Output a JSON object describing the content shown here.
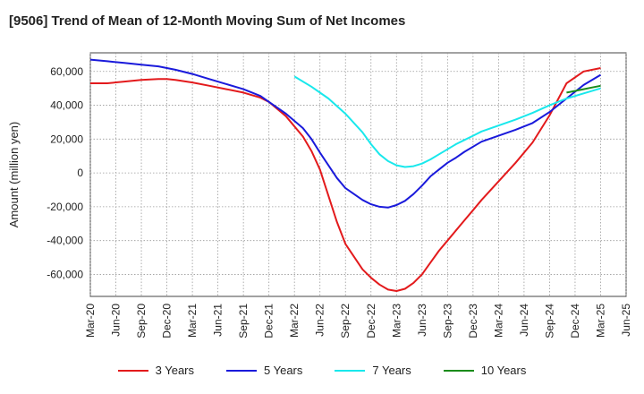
{
  "chart_data": {
    "type": "line",
    "title": "[9506]  Trend of Mean of 12-Month Moving Sum of Net Incomes",
    "xlabel": "",
    "ylabel": "Amount (million yen)",
    "ylim": [
      -73000,
      71000
    ],
    "yticks": [
      60000,
      40000,
      20000,
      0,
      -20000,
      -40000,
      -60000
    ],
    "ytick_labels": [
      "60,000",
      "40,000",
      "20,000",
      "0",
      "-20,000",
      "-40,000",
      "-60,000"
    ],
    "xticks": [
      "Mar-20",
      "Jun-20",
      "Sep-20",
      "Dec-20",
      "Mar-21",
      "Jun-21",
      "Sep-21",
      "Dec-21",
      "Mar-22",
      "Jun-22",
      "Sep-22",
      "Dec-22",
      "Mar-23",
      "Jun-23",
      "Sep-23",
      "Dec-23",
      "Mar-24",
      "Jun-24",
      "Sep-24",
      "Dec-24",
      "Mar-25",
      "Jun-25"
    ],
    "grid": true,
    "legend_position": "bottom",
    "x_index_note": "x is month index, 0 = Mar-20, 3 = Jun-20, ...",
    "series": [
      {
        "name": "3 Years",
        "color": "#e31a1c",
        "x": [
          0,
          2,
          4,
          6,
          8,
          9,
          10,
          12,
          14,
          16,
          18,
          20,
          21,
          23,
          25,
          26,
          27,
          29,
          30,
          32,
          33,
          34,
          35,
          36,
          37,
          38,
          39,
          40,
          41,
          42,
          43,
          44,
          45,
          46,
          48,
          50,
          52,
          54,
          56,
          58,
          60
        ],
        "y": [
          53000,
          53000,
          54000,
          55000,
          55500,
          55500,
          55000,
          53500,
          51500,
          49500,
          47500,
          44500,
          42000,
          33500,
          21500,
          13000,
          2000,
          -29000,
          -42000,
          -57000,
          -62000,
          -66000,
          -69000,
          -69800,
          -68500,
          -65000,
          -60000,
          -53000,
          -46000,
          -40000,
          -34000,
          -28000,
          -22000,
          -16000,
          -5000,
          6000,
          18000,
          34000,
          53000,
          60000,
          62000
        ]
      },
      {
        "name": "5 Years",
        "color": "#1a1adb",
        "x": [
          0,
          2,
          4,
          6,
          8,
          9,
          10,
          12,
          14,
          16,
          18,
          20,
          21,
          23,
          25,
          26,
          27,
          29,
          30,
          32,
          33,
          34,
          35,
          36,
          37,
          38,
          39,
          40,
          41,
          42,
          43,
          44,
          45,
          46,
          48,
          50,
          52,
          54,
          56,
          58,
          60
        ],
        "y": [
          67000,
          66000,
          65000,
          64000,
          63000,
          62000,
          61000,
          58500,
          55500,
          52500,
          49500,
          45500,
          42000,
          35000,
          26500,
          20000,
          12000,
          -3000,
          -9000,
          -16000,
          -18500,
          -20000,
          -20500,
          -19000,
          -16500,
          -12500,
          -7500,
          -2000,
          2000,
          6000,
          9000,
          12500,
          15500,
          18500,
          22000,
          25500,
          29500,
          36000,
          44000,
          52000,
          58000
        ]
      },
      {
        "name": "7 Years",
        "color": "#19e8ec",
        "x": [
          24,
          26,
          28,
          30,
          32,
          33,
          34,
          35,
          36,
          37,
          38,
          39,
          40,
          41,
          42,
          43,
          44,
          45,
          46,
          48,
          50,
          52,
          54,
          56,
          58,
          60
        ],
        "y": [
          57000,
          51000,
          44000,
          35000,
          24000,
          17000,
          11000,
          7000,
          4500,
          3500,
          4000,
          5500,
          8000,
          11000,
          14000,
          17000,
          19500,
          22000,
          24500,
          28000,
          31500,
          35500,
          40000,
          44000,
          47000,
          50000
        ]
      },
      {
        "name": "10 Years",
        "color": "#1a8c1a",
        "x": [
          56,
          57,
          58,
          59,
          60
        ],
        "y": [
          47500,
          48500,
          49500,
          50500,
          51500
        ]
      }
    ]
  }
}
